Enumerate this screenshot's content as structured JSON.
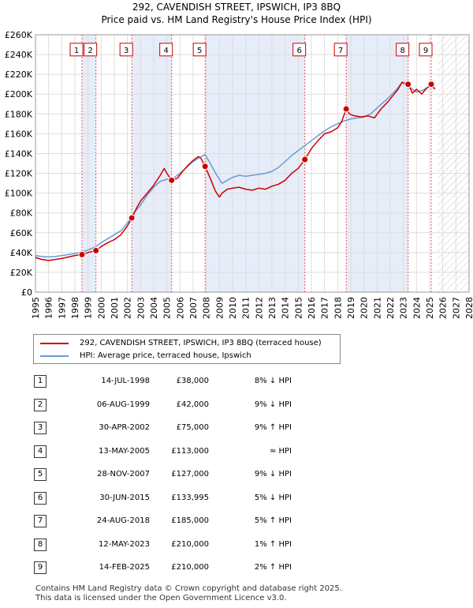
{
  "title_line1": "292, CAVENDISH STREET, IPSWICH, IP3 8BQ",
  "title_line2": "Price paid vs. HM Land Registry's House Price Index (HPI)",
  "chart_data": {
    "type": "line",
    "xlim": [
      1995,
      2028
    ],
    "ylim": [
      0,
      260000
    ],
    "y_ticks": [
      0,
      20000,
      40000,
      60000,
      80000,
      100000,
      120000,
      140000,
      160000,
      180000,
      200000,
      220000,
      240000,
      260000
    ],
    "y_tick_labels": [
      "£0",
      "£20K",
      "£40K",
      "£60K",
      "£80K",
      "£100K",
      "£120K",
      "£140K",
      "£160K",
      "£180K",
      "£200K",
      "£220K",
      "£240K",
      "£260K"
    ],
    "x_ticks": [
      1995,
      1996,
      1997,
      1998,
      1999,
      2000,
      2001,
      2002,
      2003,
      2004,
      2005,
      2006,
      2007,
      2008,
      2009,
      2010,
      2011,
      2012,
      2013,
      2014,
      2015,
      2016,
      2017,
      2018,
      2019,
      2020,
      2021,
      2022,
      2023,
      2024,
      2025,
      2026,
      2027,
      2028
    ],
    "future_start": 2025.6,
    "series": [
      {
        "name": "292, CAVENDISH STREET, IPSWICH, IP3 8BQ (terraced house)",
        "color": "#cc0000",
        "x": [
          1995.0,
          1995.5,
          1996.0,
          1996.5,
          1997.0,
          1997.5,
          1998.0,
          1998.54,
          1999.0,
          1999.6,
          2000.0,
          2000.5,
          2001.0,
          2001.5,
          2002.0,
          2002.33,
          2002.7,
          2003.0,
          2003.5,
          2004.0,
          2004.5,
          2004.8,
          2005.0,
          2005.36,
          2005.8,
          2006.2,
          2006.6,
          2007.0,
          2007.4,
          2007.6,
          2007.91,
          2008.3,
          2008.7,
          2009.0,
          2009.2,
          2009.6,
          2010.0,
          2010.5,
          2011.0,
          2011.5,
          2012.0,
          2012.5,
          2013.0,
          2013.5,
          2014.0,
          2014.5,
          2015.0,
          2015.5,
          2016.0,
          2016.5,
          2017.0,
          2017.5,
          2018.0,
          2018.3,
          2018.65,
          2018.9,
          2019.3,
          2019.8,
          2020.3,
          2020.8,
          2021.3,
          2021.8,
          2022.3,
          2022.6,
          2022.9,
          2023.36,
          2023.7,
          2024.0,
          2024.4,
          2024.7,
          2025.12,
          2025.4
        ],
        "values": [
          35000,
          33000,
          32000,
          33000,
          34000,
          35500,
          37000,
          38000,
          40000,
          42000,
          46000,
          50000,
          53000,
          58000,
          67000,
          75000,
          85000,
          92000,
          100000,
          108000,
          118000,
          125000,
          120000,
          113000,
          115000,
          122000,
          128000,
          133000,
          137000,
          135000,
          127000,
          115000,
          102000,
          96000,
          100000,
          104000,
          105000,
          106000,
          104000,
          103000,
          105000,
          104000,
          107000,
          109000,
          113000,
          120000,
          125000,
          134000,
          145000,
          153000,
          160000,
          162000,
          166000,
          172000,
          185000,
          180000,
          178000,
          177000,
          178000,
          176000,
          185000,
          192000,
          200000,
          205000,
          212000,
          210000,
          201000,
          205000,
          200000,
          205000,
          210000,
          205000
        ]
      },
      {
        "name": "HPI: Average price, terraced house, Ipswich",
        "color": "#6a9ad4",
        "x": [
          1995.0,
          1995.5,
          1996.0,
          1996.5,
          1997.0,
          1997.5,
          1998.0,
          1998.5,
          1999.0,
          1999.6,
          2000.0,
          2000.5,
          2001.0,
          2001.5,
          2002.0,
          2002.5,
          2003.0,
          2003.5,
          2004.0,
          2004.5,
          2005.0,
          2005.5,
          2006.0,
          2006.5,
          2007.0,
          2007.5,
          2007.91,
          2008.3,
          2008.8,
          2009.2,
          2009.6,
          2010.0,
          2010.5,
          2011.0,
          2011.5,
          2012.0,
          2012.5,
          2013.0,
          2013.5,
          2014.0,
          2014.5,
          2015.0,
          2015.5,
          2016.0,
          2016.5,
          2017.0,
          2017.5,
          2018.0,
          2018.5,
          2019.0,
          2019.5,
          2020.0,
          2020.5,
          2021.0,
          2021.5,
          2022.0,
          2022.5,
          2022.9,
          2023.3,
          2023.7,
          2024.0,
          2024.5,
          2025.0,
          2025.4
        ],
        "values": [
          37000,
          36000,
          35500,
          36000,
          37000,
          38000,
          39000,
          40500,
          42500,
          46000,
          50000,
          54000,
          58000,
          62000,
          70000,
          80000,
          88000,
          98000,
          106000,
          112000,
          114000,
          115000,
          120000,
          126000,
          132000,
          136000,
          139000,
          130000,
          118000,
          110000,
          113000,
          116000,
          118000,
          117000,
          118000,
          119000,
          120000,
          122000,
          126000,
          132000,
          138000,
          143000,
          148000,
          153000,
          158000,
          163000,
          167000,
          170000,
          173000,
          175000,
          176000,
          177000,
          180000,
          186000,
          192000,
          198000,
          205000,
          212000,
          208000,
          205000,
          202000,
          204000,
          208000,
          206000
        ]
      }
    ],
    "sales": [
      {
        "n": "1",
        "x": 1998.54,
        "value": 38000
      },
      {
        "n": "2",
        "x": 1999.6,
        "value": 42000
      },
      {
        "n": "3",
        "x": 2002.33,
        "value": 75000
      },
      {
        "n": "4",
        "x": 2005.36,
        "value": 113000
      },
      {
        "n": "5",
        "x": 2007.91,
        "value": 127000
      },
      {
        "n": "6",
        "x": 2015.5,
        "value": 133995
      },
      {
        "n": "7",
        "x": 2018.65,
        "value": 185000
      },
      {
        "n": "8",
        "x": 2023.36,
        "value": 210000
      },
      {
        "n": "9",
        "x": 2025.12,
        "value": 210000
      }
    ],
    "shaded_ranges": [
      [
        1998.54,
        1999.6
      ],
      [
        2002.33,
        2005.36
      ],
      [
        2007.91,
        2015.5
      ],
      [
        2018.65,
        2023.36
      ]
    ],
    "box_value": 245000,
    "colors": {
      "shade": "#e6ecf8",
      "hatch": "#c8c8c8",
      "grid": "#dddddd",
      "marker_line": "#ee5555"
    }
  },
  "legend": {
    "property_label": "292, CAVENDISH STREET, IPSWICH, IP3 8BQ (terraced house)",
    "hpi_label": "HPI: Average price, terraced house, Ipswich"
  },
  "transactions": [
    {
      "n": "1",
      "date": "14-JUL-1998",
      "price": "£38,000",
      "hpi": "8% ↓ HPI"
    },
    {
      "n": "2",
      "date": "06-AUG-1999",
      "price": "£42,000",
      "hpi": "9% ↓ HPI"
    },
    {
      "n": "3",
      "date": "30-APR-2002",
      "price": "£75,000",
      "hpi": "9% ↑ HPI"
    },
    {
      "n": "4",
      "date": "13-MAY-2005",
      "price": "£113,000",
      "hpi": "≈ HPI"
    },
    {
      "n": "5",
      "date": "28-NOV-2007",
      "price": "£127,000",
      "hpi": "9% ↓ HPI"
    },
    {
      "n": "6",
      "date": "30-JUN-2015",
      "price": "£133,995",
      "hpi": "5% ↓ HPI"
    },
    {
      "n": "7",
      "date": "24-AUG-2018",
      "price": "£185,000",
      "hpi": "5% ↑ HPI"
    },
    {
      "n": "8",
      "date": "12-MAY-2023",
      "price": "£210,000",
      "hpi": "1% ↑ HPI"
    },
    {
      "n": "9",
      "date": "14-FEB-2025",
      "price": "£210,000",
      "hpi": "2% ↑ HPI"
    }
  ],
  "footer_line1": "Contains HM Land Registry data © Crown copyright and database right 2025.",
  "footer_line2": "This data is licensed under the Open Government Licence v3.0."
}
